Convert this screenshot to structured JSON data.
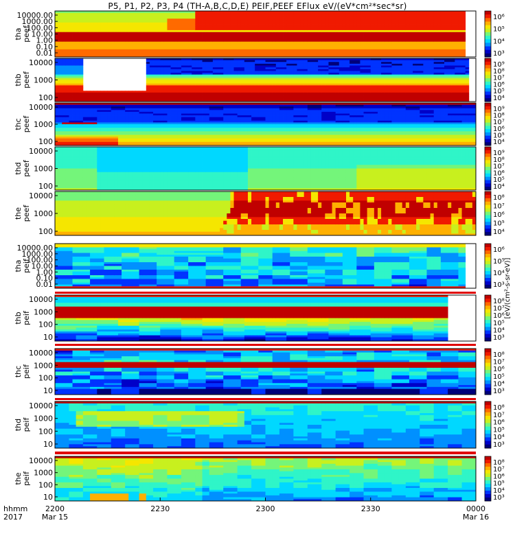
{
  "title": "P5, P1, P2, P3, P4 (TH-A,B,C,D,E) PEIF,PEEF EFlux eV/(eV*cm²*sec*sr)",
  "colorbar_title": "[eV/(cm²-s-sr-eV)]",
  "time_label": {
    "line1": "hhmm",
    "line2": "2017"
  },
  "palette": [
    "#00007a",
    "#0000c8",
    "#0033ff",
    "#0090ff",
    "#00d8ff",
    "#2ff5c8",
    "#74f57a",
    "#c8f01e",
    "#f5e600",
    "#ffb000",
    "#ff6a00",
    "#f01a00",
    "#c00000"
  ],
  "chart_data": {
    "type": "heatmap",
    "x": {
      "ticks": [
        "2200",
        "2230",
        "2300",
        "2330",
        "0000"
      ],
      "dates": [
        "Mar 15",
        "",
        "",
        "",
        "Mar 16"
      ]
    },
    "panels": [
      {
        "label": [
          "tha",
          "peef"
        ],
        "y_ticks": [
          "10000.00",
          "1000.00",
          "100.00",
          "10.00",
          "1.00",
          "0.10",
          "0.01"
        ],
        "cbar_ticks": [
          "10⁶",
          "10⁵",
          "10⁴",
          "10³"
        ],
        "description": "high-energy band yellow-green; strong red band near 1 eV; red region rising after 2240"
      },
      {
        "label": [
          "thb",
          "peef"
        ],
        "y_ticks": [
          "10000",
          "1000",
          "100"
        ],
        "cbar_ticks": [
          "10⁹",
          "10⁸",
          "10⁷",
          "10⁶",
          "10⁵",
          "10⁴"
        ],
        "description": "data gap 2207–2222; red low-energy band; blue high energies"
      },
      {
        "label": [
          "thc",
          "peef"
        ],
        "y_ticks": [
          "10000",
          "1000",
          "100"
        ],
        "cbar_ticks": [
          "10⁹",
          "10⁸",
          "10⁷",
          "10⁶",
          "10⁵",
          "10⁴"
        ],
        "description": "blue/purple high energies, green-yellow low energies"
      },
      {
        "label": [
          "thd",
          "peef"
        ],
        "y_ticks": [
          "10000",
          "1000",
          "100"
        ],
        "cbar_ticks": [
          "10⁹",
          "10⁸",
          "10⁷",
          "10⁶",
          "10⁵",
          "10⁴"
        ],
        "description": "mostly cyan-green, weak yellow band"
      },
      {
        "label": [
          "the",
          "peef"
        ],
        "y_ticks": [
          "10000",
          "1000",
          "100"
        ],
        "cbar_ticks": [
          "10⁸",
          "10⁷",
          "10⁶",
          "10⁵",
          "10⁴"
        ],
        "description": "red injection at 100–10000 eV after ~2242"
      },
      {
        "label": [
          "tha",
          "peif"
        ],
        "y_ticks": [
          "10000.00",
          "1000.00",
          "100.00",
          "10.00",
          "1.00",
          "0.10",
          "0.01"
        ],
        "cbar_ticks": [
          "10⁶",
          "10⁵",
          "10⁴",
          "10³"
        ],
        "description": "yellow top band, cyan/blue body"
      },
      {
        "label": [
          "thb",
          "peif"
        ],
        "y_ticks": [
          "10000",
          "1000",
          "100",
          "10"
        ],
        "cbar_ticks": [
          "10⁸",
          "10⁷",
          "10⁶",
          "10⁵",
          "10⁴",
          "10³"
        ],
        "description": "red band near 1000 eV; gap after 2355"
      },
      {
        "label": [
          "thc",
          "peif"
        ],
        "y_ticks": [
          "10000",
          "1000",
          "100",
          "10"
        ],
        "cbar_ticks": [
          "10⁸",
          "10⁷",
          "10⁶",
          "10⁵",
          "10⁴",
          "10³"
        ],
        "description": "red band near 1000 eV, blue elsewhere"
      },
      {
        "label": [
          "thd",
          "peif"
        ],
        "y_ticks": [
          "10000",
          "1000",
          "100",
          "10"
        ],
        "cbar_ticks": [
          "10⁸",
          "10⁷",
          "10⁶",
          "10⁵",
          "10⁴",
          "10³"
        ],
        "description": "yellow blob 2210–2300 near 1000 eV"
      },
      {
        "label": [
          "the",
          "peif"
        ],
        "y_ticks": [
          "10000",
          "1000",
          "100",
          "10"
        ],
        "cbar_ticks": [
          "10⁸",
          "10⁷",
          "10⁶",
          "10⁵",
          "10⁴",
          "10³"
        ],
        "description": "yellow upper band, cyan/blue lower"
      }
    ]
  }
}
